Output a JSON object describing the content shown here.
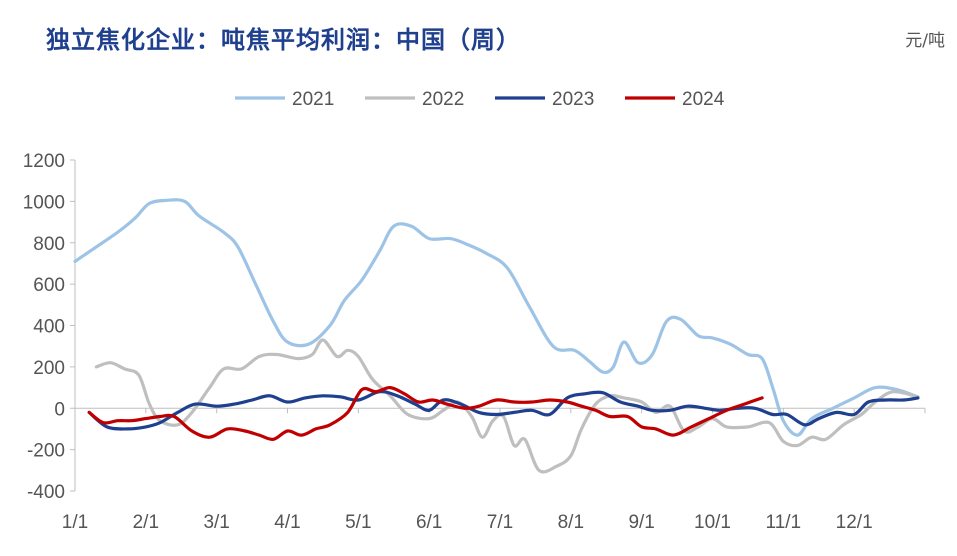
{
  "title": "独立焦化企业：吨焦平均利润：中国（周）",
  "unit": "元/吨",
  "colors": {
    "2021": "#9dc3e6",
    "2022": "#bfbfbf",
    "2023": "#1f3f8f",
    "2024": "#c00000"
  },
  "chart_data": {
    "type": "line",
    "title": "独立焦化企业：吨焦平均利润：中国（周）",
    "ylabel": "元/吨",
    "ylim": [
      -400,
      1200
    ],
    "yticks": [
      -400,
      -200,
      0,
      200,
      400,
      600,
      800,
      1000,
      1200
    ],
    "xlim": [
      0,
      12
    ],
    "xticks": [
      "1/1",
      "2/1",
      "3/1",
      "4/1",
      "5/1",
      "6/1",
      "7/1",
      "8/1",
      "9/1",
      "10/1",
      "11/1",
      "12/1"
    ],
    "legend_position": "top",
    "grid": false,
    "series": [
      {
        "name": "2021",
        "points": [
          [
            0,
            710
          ],
          [
            0.3,
            780
          ],
          [
            0.6,
            850
          ],
          [
            0.85,
            920
          ],
          [
            1.05,
            990
          ],
          [
            1.3,
            1005
          ],
          [
            1.55,
            1000
          ],
          [
            1.75,
            930
          ],
          [
            2.1,
            850
          ],
          [
            2.3,
            780
          ],
          [
            2.55,
            600
          ],
          [
            2.8,
            420
          ],
          [
            3.0,
            320
          ],
          [
            3.3,
            310
          ],
          [
            3.6,
            400
          ],
          [
            3.8,
            520
          ],
          [
            4.05,
            620
          ],
          [
            4.3,
            760
          ],
          [
            4.5,
            880
          ],
          [
            4.75,
            880
          ],
          [
            5.0,
            820
          ],
          [
            5.3,
            820
          ],
          [
            5.55,
            790
          ],
          [
            5.8,
            750
          ],
          [
            6.1,
            680
          ],
          [
            6.4,
            500
          ],
          [
            6.75,
            300
          ],
          [
            7.05,
            280
          ],
          [
            7.25,
            230
          ],
          [
            7.45,
            175
          ],
          [
            7.6,
            200
          ],
          [
            7.75,
            320
          ],
          [
            7.95,
            220
          ],
          [
            8.15,
            260
          ],
          [
            8.35,
            420
          ],
          [
            8.55,
            430
          ],
          [
            8.8,
            350
          ],
          [
            9.0,
            340
          ],
          [
            9.25,
            310
          ],
          [
            9.5,
            260
          ],
          [
            9.7,
            240
          ],
          [
            9.85,
            100
          ],
          [
            10.0,
            -60
          ],
          [
            10.2,
            -130
          ],
          [
            10.4,
            -50
          ],
          [
            10.7,
            0
          ],
          [
            11.0,
            50
          ],
          [
            11.3,
            100
          ],
          [
            11.6,
            90
          ],
          [
            11.9,
            55
          ]
        ]
      },
      {
        "name": "2022",
        "points": [
          [
            0.3,
            200
          ],
          [
            0.5,
            220
          ],
          [
            0.7,
            190
          ],
          [
            0.9,
            160
          ],
          [
            1.05,
            20
          ],
          [
            1.2,
            -60
          ],
          [
            1.45,
            -80
          ],
          [
            1.65,
            -20
          ],
          [
            1.9,
            100
          ],
          [
            2.1,
            190
          ],
          [
            2.35,
            190
          ],
          [
            2.6,
            250
          ],
          [
            2.85,
            260
          ],
          [
            3.15,
            240
          ],
          [
            3.35,
            260
          ],
          [
            3.5,
            330
          ],
          [
            3.7,
            250
          ],
          [
            3.85,
            280
          ],
          [
            4.0,
            250
          ],
          [
            4.2,
            140
          ],
          [
            4.45,
            60
          ],
          [
            4.7,
            -30
          ],
          [
            5.0,
            -50
          ],
          [
            5.2,
            -10
          ],
          [
            5.4,
            30
          ],
          [
            5.6,
            -40
          ],
          [
            5.75,
            -140
          ],
          [
            5.9,
            -60
          ],
          [
            6.05,
            -40
          ],
          [
            6.2,
            -180
          ],
          [
            6.35,
            -150
          ],
          [
            6.55,
            -300
          ],
          [
            6.8,
            -280
          ],
          [
            7.0,
            -230
          ],
          [
            7.15,
            -100
          ],
          [
            7.35,
            20
          ],
          [
            7.55,
            60
          ],
          [
            7.75,
            50
          ],
          [
            8.0,
            30
          ],
          [
            8.2,
            -20
          ],
          [
            8.4,
            10
          ],
          [
            8.6,
            -110
          ],
          [
            8.8,
            -90
          ],
          [
            9.0,
            -50
          ],
          [
            9.2,
            -90
          ],
          [
            9.5,
            -90
          ],
          [
            9.8,
            -70
          ],
          [
            10.0,
            -160
          ],
          [
            10.2,
            -180
          ],
          [
            10.4,
            -140
          ],
          [
            10.6,
            -150
          ],
          [
            10.85,
            -80
          ],
          [
            11.1,
            -30
          ],
          [
            11.3,
            30
          ],
          [
            11.55,
            80
          ],
          [
            11.9,
            55
          ]
        ]
      },
      {
        "name": "2023",
        "points": [
          [
            0.2,
            -20
          ],
          [
            0.45,
            -90
          ],
          [
            0.75,
            -100
          ],
          [
            1.0,
            -90
          ],
          [
            1.2,
            -70
          ],
          [
            1.45,
            -20
          ],
          [
            1.7,
            20
          ],
          [
            2.0,
            10
          ],
          [
            2.25,
            20
          ],
          [
            2.5,
            40
          ],
          [
            2.75,
            60
          ],
          [
            3.0,
            30
          ],
          [
            3.25,
            50
          ],
          [
            3.5,
            60
          ],
          [
            3.75,
            55
          ],
          [
            4.0,
            40
          ],
          [
            4.3,
            80
          ],
          [
            4.55,
            60
          ],
          [
            4.8,
            20
          ],
          [
            5.0,
            -10
          ],
          [
            5.2,
            40
          ],
          [
            5.45,
            20
          ],
          [
            5.7,
            -20
          ],
          [
            5.95,
            -30
          ],
          [
            6.2,
            -20
          ],
          [
            6.45,
            -10
          ],
          [
            6.7,
            -30
          ],
          [
            6.95,
            50
          ],
          [
            7.2,
            70
          ],
          [
            7.45,
            75
          ],
          [
            7.7,
            30
          ],
          [
            7.95,
            10
          ],
          [
            8.15,
            -10
          ],
          [
            8.4,
            -10
          ],
          [
            8.65,
            10
          ],
          [
            8.9,
            0
          ],
          [
            9.1,
            -10
          ],
          [
            9.35,
            0
          ],
          [
            9.6,
            0
          ],
          [
            9.85,
            -30
          ],
          [
            10.05,
            -30
          ],
          [
            10.3,
            -80
          ],
          [
            10.5,
            -50
          ],
          [
            10.75,
            -20
          ],
          [
            11.0,
            -30
          ],
          [
            11.2,
            30
          ],
          [
            11.45,
            40
          ],
          [
            11.7,
            40
          ],
          [
            11.9,
            50
          ]
        ]
      },
      {
        "name": "2024",
        "points": [
          [
            0.2,
            -20
          ],
          [
            0.4,
            -70
          ],
          [
            0.6,
            -60
          ],
          [
            0.8,
            -60
          ],
          [
            1.0,
            -50
          ],
          [
            1.2,
            -40
          ],
          [
            1.4,
            -40
          ],
          [
            1.65,
            -110
          ],
          [
            1.9,
            -140
          ],
          [
            2.15,
            -100
          ],
          [
            2.4,
            -110
          ],
          [
            2.6,
            -130
          ],
          [
            2.8,
            -150
          ],
          [
            3.0,
            -110
          ],
          [
            3.2,
            -130
          ],
          [
            3.4,
            -100
          ],
          [
            3.6,
            -80
          ],
          [
            3.85,
            -20
          ],
          [
            4.05,
            90
          ],
          [
            4.25,
            80
          ],
          [
            4.45,
            100
          ],
          [
            4.65,
            70
          ],
          [
            4.85,
            30
          ],
          [
            5.05,
            40
          ],
          [
            5.25,
            20
          ],
          [
            5.5,
            0
          ],
          [
            5.7,
            10
          ],
          [
            5.95,
            40
          ],
          [
            6.2,
            30
          ],
          [
            6.45,
            30
          ],
          [
            6.7,
            40
          ],
          [
            6.95,
            30
          ],
          [
            7.15,
            10
          ],
          [
            7.35,
            -10
          ],
          [
            7.55,
            -40
          ],
          [
            7.8,
            -40
          ],
          [
            8.0,
            -90
          ],
          [
            8.2,
            -100
          ],
          [
            8.45,
            -130
          ],
          [
            8.7,
            -90
          ],
          [
            8.95,
            -50
          ],
          [
            9.2,
            -10
          ],
          [
            9.45,
            20
          ],
          [
            9.7,
            50
          ]
        ]
      }
    ]
  }
}
